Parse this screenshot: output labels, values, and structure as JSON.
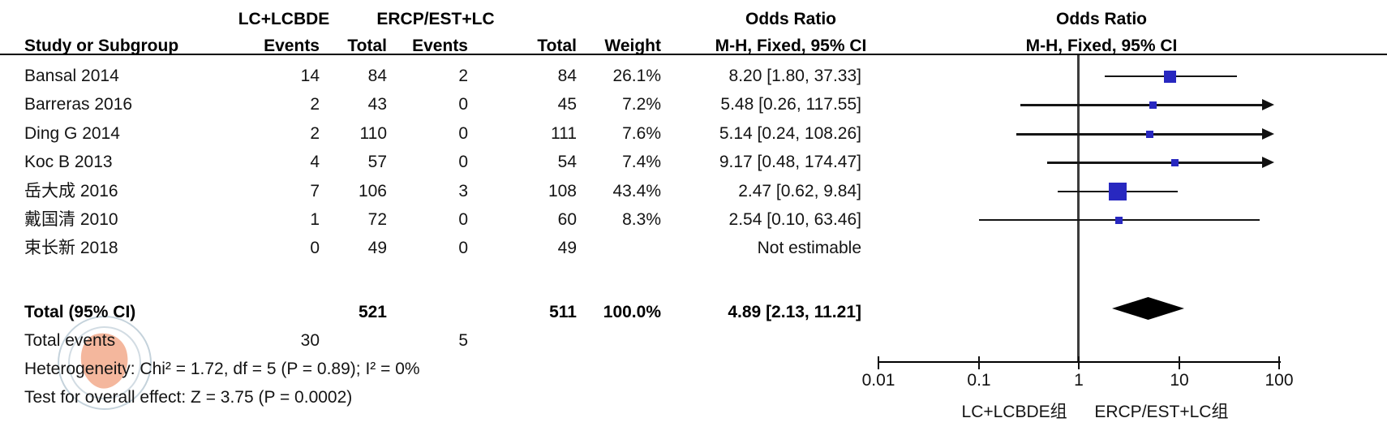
{
  "header": {
    "group1": "LC+LCBDE",
    "group2": "ERCP/EST+LC",
    "or_title_left": "Odds Ratio",
    "or_title_right": "Odds Ratio",
    "study_col": "Study or Subgroup",
    "events_col_1": "Events",
    "total_col_1": "Total",
    "events_col_2": "Events",
    "total_col_2": "Total",
    "weight_col": "Weight",
    "method_left": "M-H, Fixed, 95% CI",
    "method_right": "M-H, Fixed, 95% CI"
  },
  "totals": {
    "label": "Total (95% CI)",
    "total_1": "521",
    "total_2": "511",
    "weight_label": "100.0%",
    "or_label": "4.89 [2.13, 11.21]",
    "events_row_label": "Total events",
    "events_1": "30",
    "events_2": "5"
  },
  "footnotes": {
    "heterogeneity": "Heterogeneity: Chi² = 1.72, df = 5 (P = 0.89); I² = 0%",
    "overall_effect": "Test for overall effect: Z = 3.75 (P = 0.0002)"
  },
  "axis": {
    "tick_labels": [
      "0.01",
      "0.1",
      "1",
      "10",
      "100"
    ],
    "tick_values": [
      0.01,
      0.1,
      1,
      10,
      100
    ],
    "left_group_label": "LC+LCBDE组",
    "right_group_label": "ERCP/EST+LC组"
  },
  "colors": {
    "square": "#2828c0",
    "diamond": "#000000",
    "line": "#151515"
  },
  "chart_data": {
    "type": "forest",
    "effect_measure": "Odds Ratio",
    "method": "M-H, Fixed, 95% CI",
    "x_scale": "log10",
    "x_range": [
      0.01,
      100
    ],
    "studies": [
      {
        "name": "Bansal 2014",
        "events_1": 14,
        "total_1": 84,
        "events_2": 2,
        "total_2": 84,
        "weight": 26.1,
        "weight_label": "26.1%",
        "or": 8.2,
        "ci_low": 1.8,
        "ci_high": 37.33,
        "or_label": "8.20 [1.80, 37.33]"
      },
      {
        "name": "Barreras 2016",
        "events_1": 2,
        "total_1": 43,
        "events_2": 0,
        "total_2": 45,
        "weight": 7.2,
        "weight_label": "7.2%",
        "or": 5.48,
        "ci_low": 0.26,
        "ci_high": 117.55,
        "or_label": "5.48 [0.26, 117.55]"
      },
      {
        "name": "Ding G 2014",
        "events_1": 2,
        "total_1": 110,
        "events_2": 0,
        "total_2": 111,
        "weight": 7.6,
        "weight_label": "7.6%",
        "or": 5.14,
        "ci_low": 0.24,
        "ci_high": 108.26,
        "or_label": "5.14 [0.24, 108.26]"
      },
      {
        "name": "Koc B 2013",
        "events_1": 4,
        "total_1": 57,
        "events_2": 0,
        "total_2": 54,
        "weight": 7.4,
        "weight_label": "7.4%",
        "or": 9.17,
        "ci_low": 0.48,
        "ci_high": 174.47,
        "or_label": "9.17 [0.48, 174.47]"
      },
      {
        "name": "岳大成 2016",
        "events_1": 7,
        "total_1": 106,
        "events_2": 3,
        "total_2": 108,
        "weight": 43.4,
        "weight_label": "43.4%",
        "or": 2.47,
        "ci_low": 0.62,
        "ci_high": 9.84,
        "or_label": "2.47 [0.62, 9.84]"
      },
      {
        "name": "戴国清 2010",
        "events_1": 1,
        "total_1": 72,
        "events_2": 0,
        "total_2": 60,
        "weight": 8.3,
        "weight_label": "8.3%",
        "or": 2.54,
        "ci_low": 0.1,
        "ci_high": 63.46,
        "or_label": "2.54 [0.10, 63.46]"
      },
      {
        "name": "束长新 2018",
        "events_1": 0,
        "total_1": 49,
        "events_2": 0,
        "total_2": 49,
        "weight": null,
        "weight_label": "",
        "or": null,
        "ci_low": null,
        "ci_high": null,
        "or_label": "Not estimable"
      }
    ],
    "total": {
      "total_1": 521,
      "total_2": 511,
      "events_1": 30,
      "events_2": 5,
      "weight": 100.0,
      "or": 4.89,
      "ci_low": 2.13,
      "ci_high": 11.21,
      "heterogeneity": {
        "chi2": 1.72,
        "df": 5,
        "p": 0.89,
        "i2_pct": 0
      },
      "overall_effect": {
        "z": 3.75,
        "p": 0.0002
      }
    }
  }
}
